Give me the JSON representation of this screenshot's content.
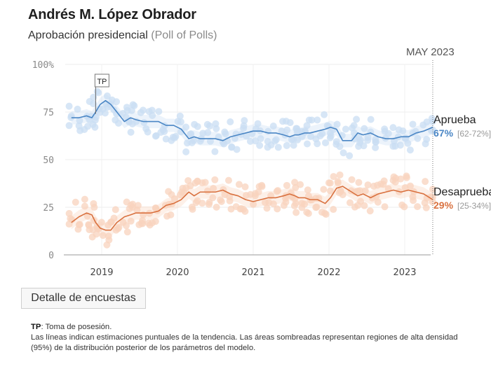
{
  "header": {
    "title": "Andrés M. López Obrador",
    "subtitle_main": "Aprobación presidencial",
    "subtitle_muted": "(Poll of Polls)",
    "date_marker": "MAY 2023"
  },
  "button": {
    "label": "Detalle de encuestas"
  },
  "notes": {
    "tp_abbr": "TP",
    "tp_text": ": Toma de posesión.",
    "text": "Las líneas indican estimaciones puntuales de la tendencia. Las áreas sombreadas representan regiones de alta densidad (95%) de la distribución posterior de los parámetros del modelo."
  },
  "chart_data": {
    "type": "line",
    "title": "Aprobación presidencial (Poll of Polls)",
    "xlabel": "",
    "ylabel": "",
    "x_range": [
      2018.55,
      2023.38
    ],
    "ylim": [
      0,
      100
    ],
    "y_ticks": [
      0,
      25,
      50,
      75,
      100
    ],
    "y_tick_labels": [
      "0",
      "25",
      "50",
      "75",
      "100%"
    ],
    "x_ticks": [
      2019,
      2020,
      2021,
      2022,
      2023
    ],
    "x_tick_labels": [
      "2019",
      "2020",
      "2021",
      "2022",
      "2023"
    ],
    "grid": true,
    "annotations": [
      {
        "label": "TP",
        "x": 2018.92,
        "meaning": "Toma de posesión"
      },
      {
        "label": "MAY 2023",
        "x": 2023.37
      }
    ],
    "colors": {
      "aprueba": "#4a86c5",
      "desaprueba": "#d9713f",
      "aprueba_dots": "#c9ddf3",
      "desaprueba_dots": "#f8d3bd"
    },
    "series": [
      {
        "name": "Aprueba",
        "latest": "67%",
        "interval": "[62-72%]",
        "x": [
          2018.6,
          2018.7,
          2018.8,
          2018.87,
          2018.92,
          2018.98,
          2019.05,
          2019.12,
          2019.2,
          2019.3,
          2019.38,
          2019.45,
          2019.55,
          2019.65,
          2019.75,
          2019.85,
          2019.95,
          2020.05,
          2020.15,
          2020.22,
          2020.3,
          2020.4,
          2020.5,
          2020.6,
          2020.7,
          2020.8,
          2020.9,
          2021.0,
          2021.1,
          2021.2,
          2021.3,
          2021.4,
          2021.48,
          2021.55,
          2021.6,
          2021.68,
          2021.75,
          2021.85,
          2021.95,
          2022.02,
          2022.1,
          2022.18,
          2022.3,
          2022.38,
          2022.45,
          2022.55,
          2022.65,
          2022.75,
          2022.85,
          2022.95,
          2023.05,
          2023.15,
          2023.25,
          2023.37
        ],
        "values": [
          72,
          72,
          73,
          72,
          75,
          79,
          81,
          79,
          75,
          70,
          72,
          71,
          70,
          70,
          70,
          68,
          68,
          66,
          61,
          62,
          61,
          61,
          61,
          60,
          62,
          63,
          64,
          65,
          65,
          64,
          64,
          63,
          62,
          63,
          63,
          64,
          64,
          65,
          66,
          67,
          66,
          60,
          60,
          64,
          63,
          64,
          62,
          61,
          61,
          62,
          62,
          64,
          65,
          67
        ]
      },
      {
        "name": "Desaprueba",
        "latest": "29%",
        "interval": "[25-34%]",
        "x": [
          2018.6,
          2018.7,
          2018.8,
          2018.87,
          2018.92,
          2018.98,
          2019.05,
          2019.12,
          2019.2,
          2019.3,
          2019.38,
          2019.45,
          2019.55,
          2019.65,
          2019.75,
          2019.85,
          2019.95,
          2020.05,
          2020.15,
          2020.22,
          2020.3,
          2020.4,
          2020.5,
          2020.6,
          2020.7,
          2020.8,
          2020.9,
          2021.0,
          2021.1,
          2021.2,
          2021.3,
          2021.4,
          2021.48,
          2021.55,
          2021.6,
          2021.68,
          2021.75,
          2021.85,
          2021.95,
          2022.02,
          2022.1,
          2022.18,
          2022.3,
          2022.38,
          2022.45,
          2022.55,
          2022.65,
          2022.75,
          2022.85,
          2022.95,
          2023.05,
          2023.15,
          2023.25,
          2023.37
        ],
        "values": [
          17,
          20,
          22,
          21,
          17,
          14,
          13,
          13,
          17,
          20,
          21,
          22,
          22,
          22,
          23,
          26,
          27,
          29,
          33,
          31,
          33,
          33,
          33,
          34,
          32,
          31,
          29,
          28,
          29,
          30,
          30,
          31,
          32,
          31,
          30,
          30,
          29,
          29,
          27,
          30,
          35,
          36,
          33,
          31,
          32,
          30,
          32,
          33,
          34,
          33,
          34,
          33,
          32,
          29
        ]
      }
    ]
  }
}
